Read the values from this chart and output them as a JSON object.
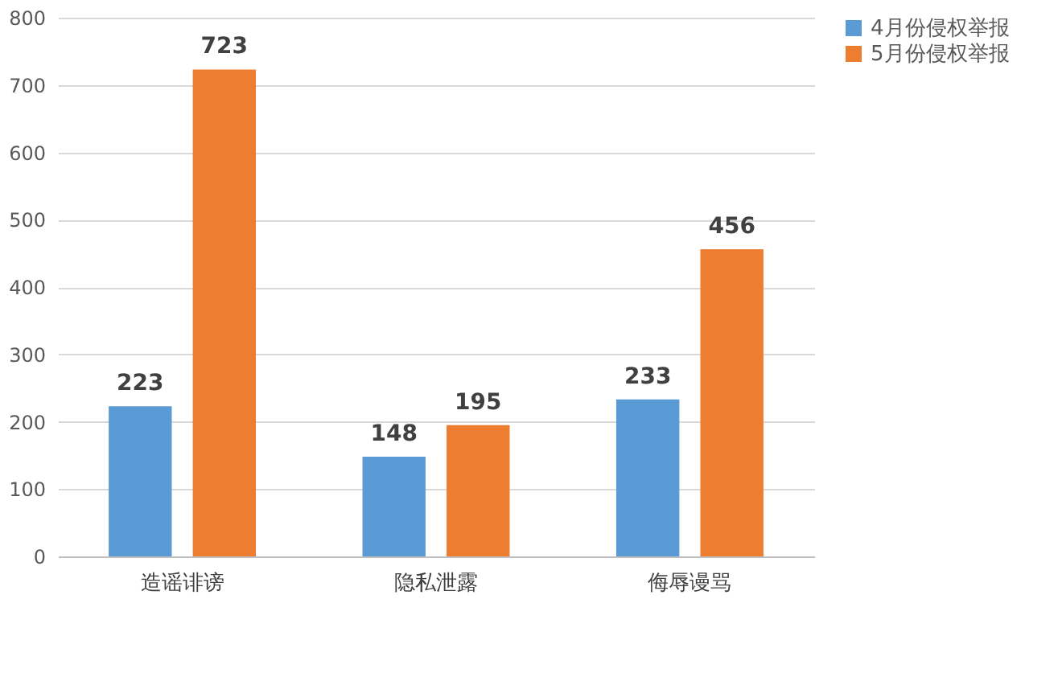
{
  "chart_data": {
    "type": "bar",
    "categories": [
      "造谣诽谤",
      "隐私泄露",
      "侮辱谩骂"
    ],
    "series": [
      {
        "name": "4月份侵权举报",
        "color": "#5b9bd5",
        "values": [
          223,
          148,
          233
        ]
      },
      {
        "name": "5月份侵权举报",
        "color": "#ed7d31",
        "values": [
          723,
          195,
          456
        ]
      }
    ],
    "data_labels": true,
    "ylim": [
      0,
      800
    ],
    "yticks": [
      0,
      100,
      200,
      300,
      400,
      500,
      600,
      700,
      800
    ],
    "grid": "y",
    "legend": "right"
  }
}
